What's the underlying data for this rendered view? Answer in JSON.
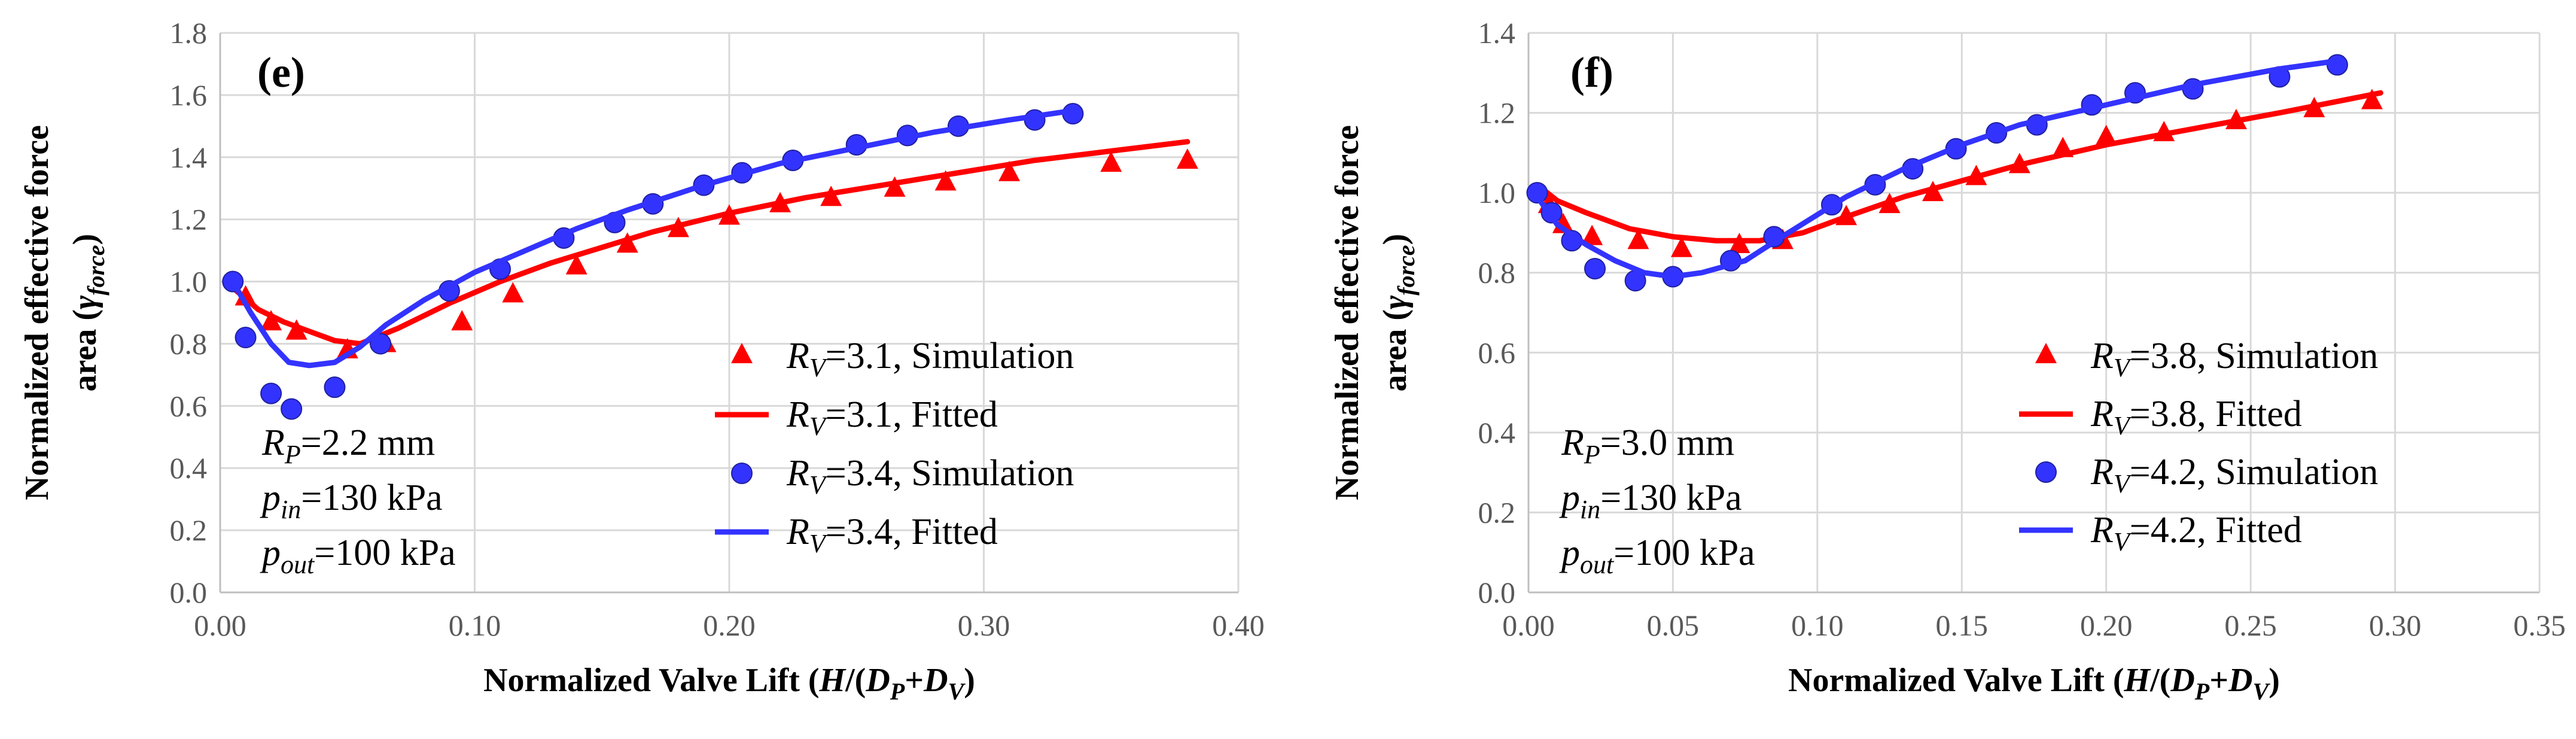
{
  "chart_data": [
    {
      "panel_label": "(e)",
      "type": "scatter",
      "xlabel": {
        "prefix": "Normalized Valve Lift (",
        "H": "H",
        "slash": "/(",
        "D1": "D",
        "s1": "P",
        "plus": "+",
        "D2": "D",
        "s2": "V",
        "close": ")"
      },
      "ylabel": {
        "line1": "Normalized effective force",
        "line2_prefix": "area (",
        "gamma": "γ",
        "sub": "force",
        "line2_suffix": ")"
      },
      "xlim": [
        0,
        0.4
      ],
      "ylim": [
        0,
        1.8
      ],
      "xticks": [
        0,
        0.1,
        0.2,
        0.3,
        0.4
      ],
      "yticks": [
        0,
        0.2,
        0.4,
        0.6,
        0.8,
        1.0,
        1.2,
        1.4,
        1.6,
        1.8
      ],
      "xtick_labels": [
        "0.00",
        "0.10",
        "0.20",
        "0.30",
        "0.40"
      ],
      "ytick_labels": [
        "0.0",
        "0.2",
        "0.4",
        "0.6",
        "0.8",
        "1.0",
        "1.2",
        "1.4",
        "1.6",
        "1.8"
      ],
      "annotation": [
        {
          "var": "R",
          "sub": "P",
          "rest": "=2.2 mm"
        },
        {
          "var": "p",
          "sub": "in",
          "rest": "=130 kPa"
        },
        {
          "var": "p",
          "sub": "out",
          "rest": "=100 kPa"
        }
      ],
      "series": [
        {
          "name": "Simulation",
          "var": "R",
          "sub": "V",
          "val": "=3.1, Simulation",
          "marker": "triangle",
          "color": "#ff0000",
          "x": [
            0.01,
            0.02,
            0.03,
            0.05,
            0.065,
            0.095,
            0.115,
            0.14,
            0.16,
            0.18,
            0.2,
            0.22,
            0.24,
            0.265,
            0.285,
            0.31,
            0.35,
            0.38
          ],
          "y": [
            0.95,
            0.87,
            0.84,
            0.78,
            0.8,
            0.87,
            0.96,
            1.05,
            1.12,
            1.17,
            1.21,
            1.25,
            1.27,
            1.3,
            1.32,
            1.35,
            1.38,
            1.39
          ]
        },
        {
          "name": "Fitted",
          "var": "R",
          "sub": "V",
          "val": "=3.1, Fitted",
          "marker": "line",
          "color": "#ff0000",
          "x": [
            0.005,
            0.015,
            0.025,
            0.035,
            0.045,
            0.055,
            0.07,
            0.09,
            0.11,
            0.13,
            0.15,
            0.17,
            0.2,
            0.23,
            0.26,
            0.29,
            0.32,
            0.35,
            0.38
          ],
          "y": [
            0.98,
            0.91,
            0.87,
            0.84,
            0.81,
            0.8,
            0.85,
            0.93,
            1.0,
            1.06,
            1.11,
            1.16,
            1.22,
            1.27,
            1.31,
            1.35,
            1.39,
            1.42,
            1.45
          ]
        },
        {
          "name": "Simulation",
          "var": "R",
          "sub": "V",
          "val": "=3.4, Simulation",
          "marker": "circle",
          "color": "#3333ff",
          "x": [
            0.005,
            0.01,
            0.02,
            0.028,
            0.045,
            0.063,
            0.09,
            0.11,
            0.135,
            0.155,
            0.17,
            0.19,
            0.205,
            0.225,
            0.25,
            0.27,
            0.29,
            0.32,
            0.335
          ],
          "y": [
            1.0,
            0.82,
            0.64,
            0.59,
            0.66,
            0.8,
            0.97,
            1.04,
            1.14,
            1.19,
            1.25,
            1.31,
            1.35,
            1.39,
            1.44,
            1.47,
            1.5,
            1.52,
            1.54
          ]
        },
        {
          "name": "Fitted",
          "var": "R",
          "sub": "V",
          "val": "=3.4, Fitted",
          "marker": "line",
          "color": "#3333ff",
          "x": [
            0.005,
            0.012,
            0.02,
            0.027,
            0.035,
            0.045,
            0.055,
            0.065,
            0.08,
            0.1,
            0.12,
            0.14,
            0.16,
            0.19,
            0.22,
            0.25,
            0.28,
            0.31,
            0.335
          ],
          "y": [
            1.0,
            0.9,
            0.8,
            0.74,
            0.73,
            0.74,
            0.79,
            0.86,
            0.94,
            1.03,
            1.1,
            1.17,
            1.23,
            1.31,
            1.38,
            1.43,
            1.48,
            1.52,
            1.55
          ]
        }
      ]
    },
    {
      "panel_label": "(f)",
      "type": "scatter",
      "xlabel": {
        "prefix": "Normalized Valve Lift (",
        "H": "H",
        "slash": "/(",
        "D1": "D",
        "s1": "P",
        "plus": "+",
        "D2": "D",
        "s2": "V",
        "close": ")"
      },
      "ylabel": {
        "line1": "Normalized effective force",
        "line2_prefix": "area (",
        "gamma": "γ",
        "sub": "force",
        "line2_suffix": ")"
      },
      "xlim": [
        0,
        0.35
      ],
      "ylim": [
        0,
        1.4
      ],
      "xticks": [
        0,
        0.05,
        0.1,
        0.15,
        0.2,
        0.25,
        0.3,
        0.35
      ],
      "yticks": [
        0,
        0.2,
        0.4,
        0.6,
        0.8,
        1.0,
        1.2,
        1.4
      ],
      "xtick_labels": [
        "0.00",
        "0.05",
        "0.10",
        "0.15",
        "0.20",
        "0.25",
        "0.30",
        "0.35"
      ],
      "ytick_labels": [
        "0.0",
        "0.2",
        "0.4",
        "0.6",
        "0.8",
        "1.0",
        "1.2",
        "1.4"
      ],
      "annotation": [
        {
          "var": "R",
          "sub": "P",
          "rest": "=3.0 mm"
        },
        {
          "var": "p",
          "sub": "in",
          "rest": "=130 kPa"
        },
        {
          "var": "p",
          "sub": "out",
          "rest": "=100 kPa"
        }
      ],
      "series": [
        {
          "name": "Simulation",
          "var": "R",
          "sub": "V",
          "val": "=3.8, Simulation",
          "marker": "triangle",
          "color": "#ff0000",
          "x": [
            0.007,
            0.012,
            0.022,
            0.038,
            0.053,
            0.073,
            0.088,
            0.11,
            0.125,
            0.14,
            0.155,
            0.17,
            0.185,
            0.2,
            0.22,
            0.245,
            0.272,
            0.292
          ],
          "y": [
            0.97,
            0.92,
            0.89,
            0.88,
            0.86,
            0.87,
            0.88,
            0.94,
            0.97,
            1.0,
            1.04,
            1.07,
            1.11,
            1.14,
            1.15,
            1.18,
            1.21,
            1.23
          ]
        },
        {
          "name": "Fitted",
          "var": "R",
          "sub": "V",
          "val": "=3.8, Fitted",
          "marker": "line",
          "color": "#ff0000",
          "x": [
            0.003,
            0.01,
            0.02,
            0.035,
            0.05,
            0.065,
            0.08,
            0.095,
            0.11,
            0.13,
            0.15,
            0.17,
            0.2,
            0.23,
            0.26,
            0.295
          ],
          "y": [
            1.02,
            0.98,
            0.95,
            0.91,
            0.89,
            0.88,
            0.88,
            0.9,
            0.94,
            0.99,
            1.03,
            1.07,
            1.12,
            1.16,
            1.2,
            1.25
          ]
        },
        {
          "name": "Simulation",
          "var": "R",
          "sub": "V",
          "val": "=4.2, Simulation",
          "marker": "circle",
          "color": "#3333ff",
          "x": [
            0.003,
            0.008,
            0.015,
            0.023,
            0.037,
            0.05,
            0.07,
            0.085,
            0.105,
            0.12,
            0.133,
            0.148,
            0.162,
            0.176,
            0.195,
            0.21,
            0.23,
            0.26,
            0.28
          ],
          "y": [
            1.0,
            0.95,
            0.88,
            0.81,
            0.78,
            0.79,
            0.83,
            0.89,
            0.97,
            1.02,
            1.06,
            1.11,
            1.15,
            1.17,
            1.22,
            1.25,
            1.26,
            1.29,
            1.32
          ]
        },
        {
          "name": "Fitted",
          "var": "R",
          "sub": "V",
          "val": "=4.2, Fitted",
          "marker": "line",
          "color": "#3333ff",
          "x": [
            0.003,
            0.01,
            0.02,
            0.03,
            0.04,
            0.05,
            0.06,
            0.075,
            0.09,
            0.11,
            0.13,
            0.15,
            0.17,
            0.2,
            0.23,
            0.26,
            0.28
          ],
          "y": [
            0.99,
            0.92,
            0.87,
            0.83,
            0.8,
            0.79,
            0.8,
            0.83,
            0.9,
            0.99,
            1.06,
            1.12,
            1.17,
            1.22,
            1.27,
            1.31,
            1.33
          ]
        }
      ]
    }
  ]
}
